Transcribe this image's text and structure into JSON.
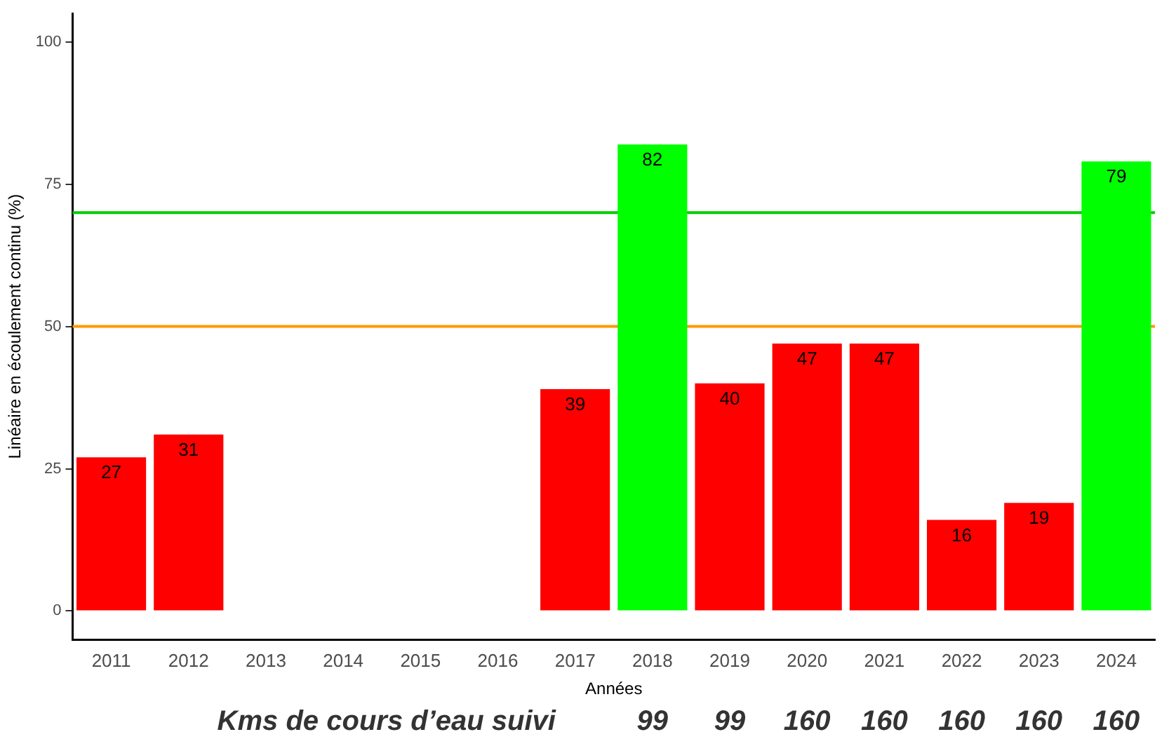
{
  "chart_data": {
    "type": "bar",
    "xlabel": "Années",
    "ylabel": "Linéaire en écoulement continu (%)",
    "categories": [
      "2011",
      "2012",
      "2013",
      "2014",
      "2015",
      "2016",
      "2017",
      "2018",
      "2019",
      "2020",
      "2021",
      "2022",
      "2023",
      "2024"
    ],
    "values": [
      27,
      31,
      null,
      null,
      null,
      null,
      39,
      82,
      40,
      47,
      47,
      16,
      19,
      79
    ],
    "colors": [
      "#ff0000",
      "#ff0000",
      "#ff0000",
      "#ff0000",
      "#ff0000",
      "#ff0000",
      "#ff0000",
      "#00ff00",
      "#ff0000",
      "#ff0000",
      "#ff0000",
      "#ff0000",
      "#ff0000",
      "#00ff00"
    ],
    "ylim": [
      -5,
      105
    ],
    "yticks": [
      0,
      25,
      50,
      75,
      100
    ],
    "grid": false,
    "legend": false,
    "data_labels": true,
    "ref_lines": [
      {
        "axis": "y",
        "value": 70,
        "color": "#00cc00"
      },
      {
        "axis": "y",
        "value": 50,
        "color": "#ff9900"
      }
    ],
    "annotations": [
      "Kms de cours d’eau suivi",
      "99",
      "99",
      "160",
      "160",
      "160",
      "160",
      "160"
    ]
  }
}
